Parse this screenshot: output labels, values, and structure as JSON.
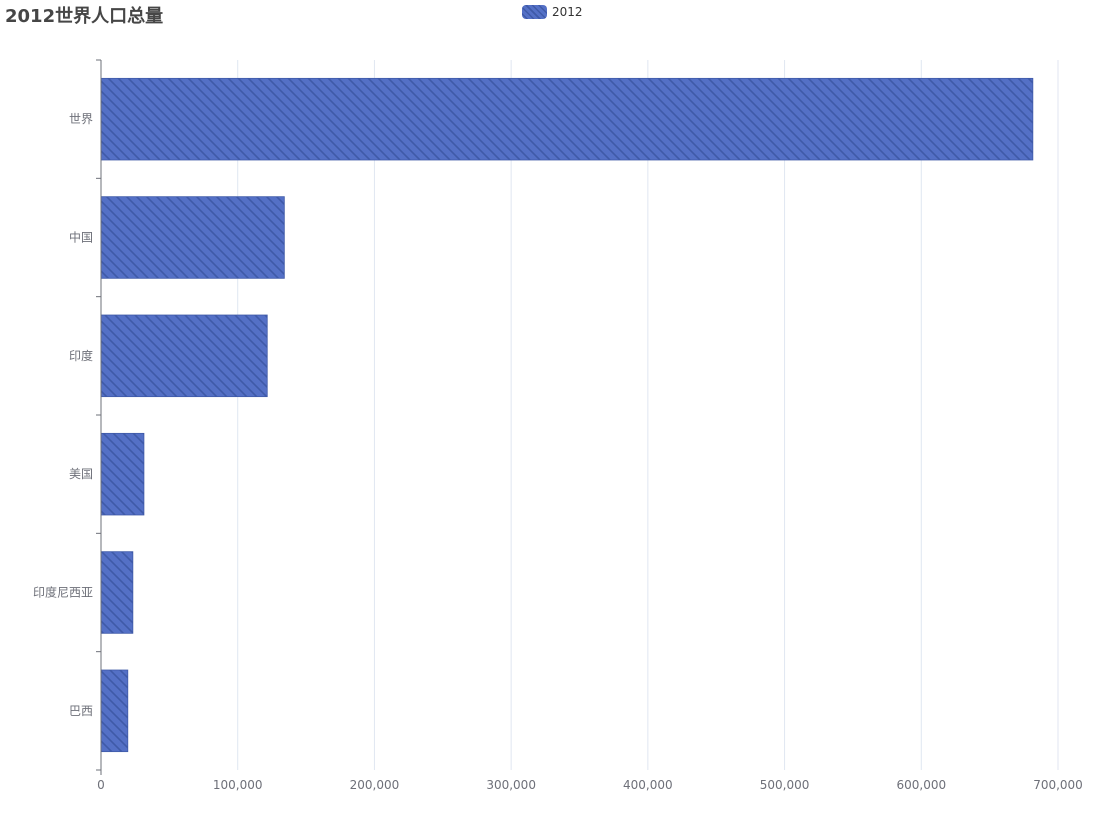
{
  "chart_data": {
    "type": "bar",
    "orientation": "horizontal",
    "title": "2012世界人口总量",
    "categories": [
      "世界",
      "中国",
      "印度",
      "美国",
      "印度尼西亚",
      "巴西"
    ],
    "series": [
      {
        "name": "2012",
        "values": [
          681600,
          134100,
          121600,
          31400,
          23300,
          19600
        ],
        "color": "#5470c6",
        "pattern": "diagonal-stripes"
      }
    ],
    "xlim": [
      0,
      700000
    ],
    "x_ticks": [
      0,
      100000,
      200000,
      300000,
      400000,
      500000,
      600000,
      700000
    ],
    "x_tick_labels": [
      "0",
      "100,000",
      "200,000",
      "300,000",
      "400,000",
      "500,000",
      "600,000",
      "700,000"
    ],
    "xlabel": "",
    "ylabel": "",
    "grid": "vertical",
    "legend": "top-center"
  }
}
